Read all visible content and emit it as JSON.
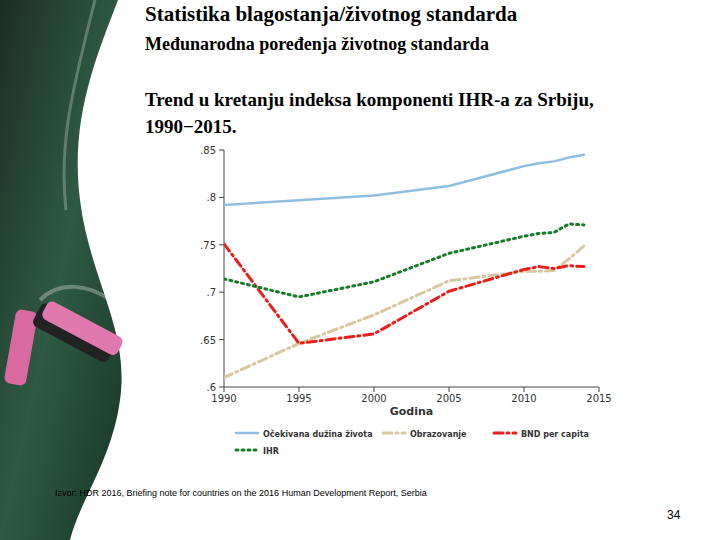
{
  "slide": {
    "title": "Statistika blagostanja/životnog standarda",
    "subtitle": "Međunarodna poređenja životnog standarda",
    "source": "Izvor: HDR 2016, Briefing note for countries on the 2016 Human Development Report, Serbia",
    "page": "34"
  },
  "chart_data": {
    "type": "line",
    "title": "Trend u kretanju indeksa komponenti IHR-a za Srbiju, 1990−2015.",
    "x_label": "Godina",
    "x": [
      1990,
      1995,
      2000,
      2005,
      2010,
      2011,
      2012,
      2013,
      2014
    ],
    "series": [
      {
        "name": "Očekivana dužina života",
        "color": "#8fbfe0",
        "line_style": "solid",
        "values": [
          0.792,
          0.797,
          0.802,
          0.812,
          0.833,
          0.836,
          0.838,
          0.842,
          0.845
        ]
      },
      {
        "name": "Obrazovanje",
        "color": "#d8c8a0",
        "line_style": "dashdot",
        "values": [
          0.61,
          0.646,
          0.676,
          0.712,
          0.722,
          0.722,
          0.723,
          0.735,
          0.749
        ]
      },
      {
        "name": "BND per capita",
        "color": "#e8201c",
        "line_style": "dashdot",
        "values": [
          0.751,
          0.646,
          0.656,
          0.701,
          0.724,
          0.727,
          0.725,
          0.728,
          0.727
        ]
      },
      {
        "name": "IHR",
        "color": "#1a7a2a",
        "line_style": "dotted",
        "values": [
          0.714,
          0.695,
          0.711,
          0.741,
          0.759,
          0.762,
          0.763,
          0.772,
          0.771
        ]
      }
    ],
    "xlim": [
      1990,
      2015
    ],
    "xticks": [
      1990,
      1995,
      2000,
      2005,
      2010,
      2015
    ],
    "ylim": [
      0.6,
      0.85
    ],
    "yticks": [
      {
        "value": 0.6,
        "label": ".6"
      },
      {
        "value": 0.65,
        "label": ".65"
      },
      {
        "value": 0.7,
        "label": ".7"
      },
      {
        "value": 0.75,
        "label": ".75"
      },
      {
        "value": 0.8,
        "label": ".8"
      },
      {
        "value": 0.85,
        "label": ".85"
      }
    ],
    "grid": false,
    "legend": "bottom"
  }
}
